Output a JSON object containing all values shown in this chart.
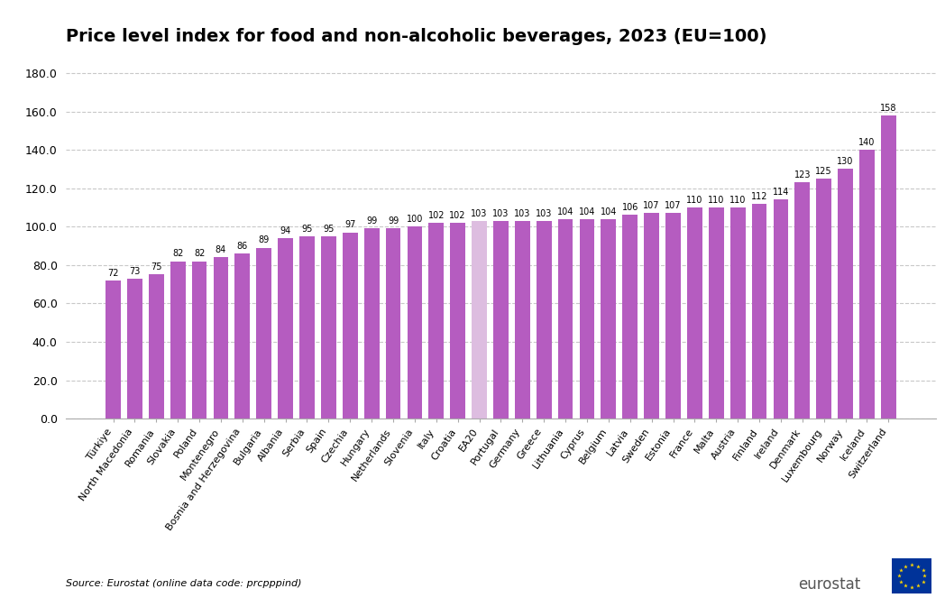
{
  "title": "Price level index for food and non-alcoholic beverages, 2023 (EU=100)",
  "categories": [
    "Türkiye",
    "North Macedonia",
    "Romania",
    "Slovakia",
    "Poland",
    "Montenegro",
    "Bosnia and Herzegovina",
    "Bulgaria",
    "Albania",
    "Serbia",
    "Spain",
    "Czechia",
    "Hungary",
    "Netherlands",
    "Slovenia",
    "Italy",
    "Croatia",
    "EA20",
    "Portugal",
    "Germany",
    "Greece",
    "Lithuania",
    "Cyprus",
    "Belgium",
    "Latvia",
    "Sweden",
    "Estonia",
    "France",
    "Malta",
    "Austria",
    "Finland",
    "Ireland",
    "Denmark",
    "Luxembourg",
    "Norway",
    "Iceland",
    "Switzerland"
  ],
  "values": [
    72,
    73,
    75,
    82,
    82,
    84,
    86,
    89,
    94,
    95,
    95,
    97,
    99,
    99,
    100,
    102,
    102,
    103,
    103,
    103,
    103,
    104,
    104,
    104,
    106,
    107,
    107,
    110,
    110,
    110,
    112,
    114,
    123,
    125,
    130,
    140,
    158
  ],
  "bar_color_default": "#b55cc0",
  "bar_color_ea20": "#ddbde0",
  "ea20_index": 17,
  "ylim": [
    0,
    190
  ],
  "yticks": [
    0,
    20,
    40,
    60,
    80,
    100,
    120,
    140,
    160,
    180
  ],
  "ytick_labels": [
    "0.0",
    "20.0",
    "40.0",
    "60.0",
    "80.0",
    "100.0",
    "120.0",
    "140.0",
    "160.0",
    "180.0"
  ],
  "source_text": "Source: Eurostat (online data code: prcpppind)",
  "background_color": "#ffffff",
  "grid_color": "#c8c8c8",
  "title_fontsize": 14,
  "label_fontsize": 8,
  "value_fontsize": 7,
  "axis_label_fontsize": 9
}
